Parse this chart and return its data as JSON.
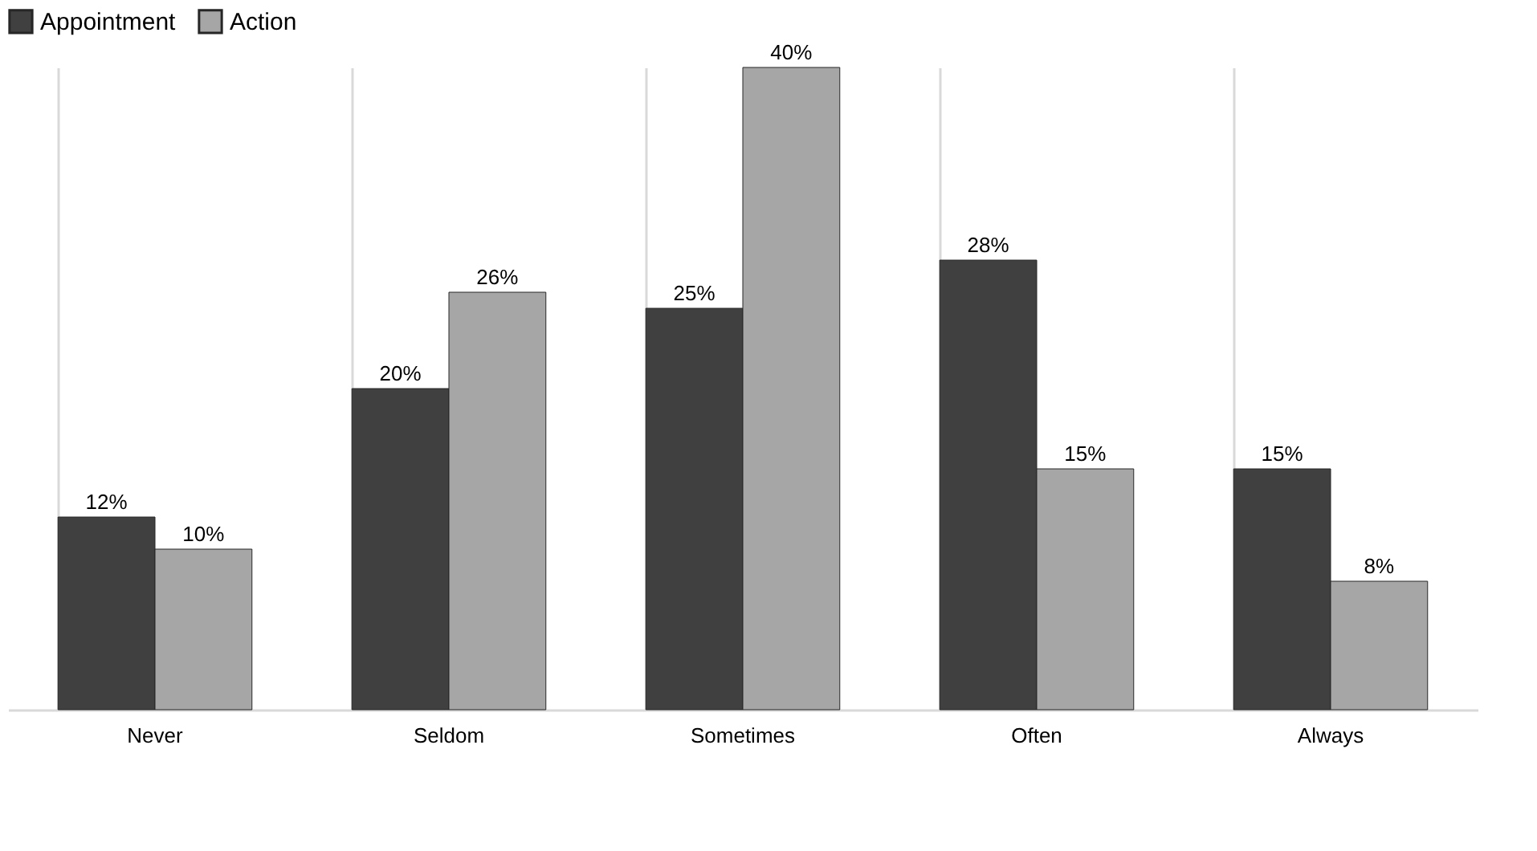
{
  "chart_data": {
    "type": "bar",
    "categories": [
      "Never",
      "Seldom",
      "Sometimes",
      "Often",
      "Always"
    ],
    "series": [
      {
        "name": "Appointment",
        "color": "#404040",
        "values": [
          12,
          20,
          25,
          28,
          15
        ],
        "value_labels": [
          "12%",
          "20%",
          "25%",
          "28%",
          "15%"
        ]
      },
      {
        "name": "Action",
        "color": "#a6a6a6",
        "values": [
          10,
          26,
          40,
          15,
          8
        ],
        "value_labels": [
          "10%",
          "26%",
          "40%",
          "15%",
          "8%"
        ]
      }
    ],
    "legend": "top",
    "grid": "x",
    "tick_labels": "x"
  }
}
